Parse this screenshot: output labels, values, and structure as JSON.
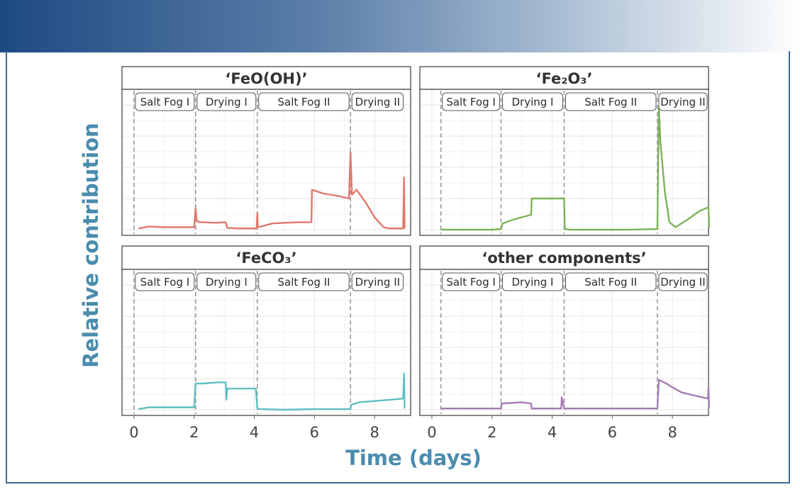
{
  "chart_data": {
    "type": "line",
    "xlabel": "Time (days)",
    "ylabel": "Relative contribution",
    "xlim": [
      -0.4,
      9.2
    ],
    "ylim": [
      0,
      1
    ],
    "x_ticks": [
      "0",
      "2",
      "4",
      "6",
      "8"
    ],
    "facets": [
      {
        "title": "‘FeO(OH)’",
        "color": "#e0786c",
        "phases": [
          {
            "label": "Salt Fog I",
            "start": 0.0,
            "end": 2.05
          },
          {
            "label": "Drying I",
            "start": 2.05,
            "end": 4.1
          },
          {
            "label": "Salt Fog II",
            "start": 4.1,
            "end": 7.2
          },
          {
            "label": "Drying II",
            "start": 7.2,
            "end": 9.0
          }
        ],
        "x": [
          0.15,
          0.5,
          1.0,
          1.5,
          2.0,
          2.05,
          2.08,
          2.15,
          2.3,
          2.7,
          3.05,
          3.1,
          3.5,
          4.0,
          4.08,
          4.1,
          4.12,
          4.3,
          4.6,
          5.0,
          5.5,
          5.9,
          5.92,
          6.3,
          6.8,
          7.15,
          7.2,
          7.25,
          7.4,
          7.7,
          8.0,
          8.3,
          8.5,
          8.95,
          8.98,
          9.0
        ],
        "y": [
          0.01,
          0.025,
          0.02,
          0.02,
          0.02,
          0.17,
          0.08,
          0.06,
          0.06,
          0.055,
          0.06,
          0.015,
          0.01,
          0.01,
          0.01,
          0.13,
          0.02,
          0.03,
          0.05,
          0.055,
          0.06,
          0.06,
          0.32,
          0.29,
          0.27,
          0.25,
          0.62,
          0.28,
          0.32,
          0.22,
          0.1,
          0.02,
          0.01,
          0.01,
          0.42,
          0.01
        ]
      },
      {
        "title": "‘Fe₂O₃’",
        "color": "#7cb356",
        "phases": [
          {
            "label": "Salt Fog I",
            "start": 0.3,
            "end": 2.3
          },
          {
            "label": "Drying I",
            "start": 2.3,
            "end": 4.4
          },
          {
            "label": "Salt Fog II",
            "start": 4.4,
            "end": 7.5
          },
          {
            "label": "Drying II",
            "start": 7.5,
            "end": 9.3
          }
        ],
        "x": [
          0.3,
          1.0,
          2.0,
          2.3,
          2.35,
          2.7,
          3.0,
          3.3,
          3.32,
          4.0,
          4.4,
          4.42,
          4.6,
          5.5,
          6.5,
          7.5,
          7.55,
          7.6,
          7.75,
          7.9,
          8.1,
          8.5,
          8.9,
          9.2,
          9.22
        ],
        "y": [
          0.0,
          0.0,
          0.0,
          0.005,
          0.05,
          0.08,
          0.1,
          0.12,
          0.25,
          0.25,
          0.25,
          0.005,
          0.0,
          0.0,
          0.0,
          0.005,
          0.98,
          0.7,
          0.3,
          0.06,
          0.02,
          0.08,
          0.15,
          0.18,
          0.02
        ]
      },
      {
        "title": "‘FeCO₃’",
        "color": "#5fbfc0",
        "phases": [
          {
            "label": "Salt Fog I",
            "start": 0.0,
            "end": 2.05
          },
          {
            "label": "Drying I",
            "start": 2.05,
            "end": 4.1
          },
          {
            "label": "Salt Fog II",
            "start": 4.1,
            "end": 7.2
          },
          {
            "label": "Drying II",
            "start": 7.2,
            "end": 9.0
          }
        ],
        "x": [
          0.15,
          0.5,
          1.0,
          2.0,
          2.05,
          2.3,
          2.8,
          3.05,
          3.07,
          3.1,
          3.5,
          4.05,
          4.1,
          4.2,
          5.0,
          6.0,
          7.0,
          7.2,
          7.22,
          7.5,
          8.0,
          8.5,
          8.95,
          8.98,
          9.0
        ],
        "y": [
          0.005,
          0.02,
          0.02,
          0.02,
          0.21,
          0.21,
          0.22,
          0.22,
          0.08,
          0.17,
          0.17,
          0.17,
          0.01,
          0.005,
          0.0,
          0.005,
          0.005,
          0.005,
          0.04,
          0.06,
          0.07,
          0.08,
          0.09,
          0.29,
          0.01
        ]
      },
      {
        "title": "‘other components’",
        "color": "#a57db5",
        "phases": [
          {
            "label": "Salt Fog I",
            "start": 0.3,
            "end": 2.3
          },
          {
            "label": "Drying I",
            "start": 2.3,
            "end": 4.4
          },
          {
            "label": "Salt Fog II",
            "start": 4.4,
            "end": 7.5
          },
          {
            "label": "Drying II",
            "start": 7.5,
            "end": 9.3
          }
        ],
        "x": [
          0.3,
          1.0,
          2.0,
          2.3,
          2.32,
          3.0,
          3.3,
          3.32,
          4.0,
          4.3,
          4.32,
          4.4,
          5.0,
          6.0,
          7.0,
          7.5,
          7.55,
          7.8,
          8.0,
          8.3,
          8.8,
          9.18,
          9.2,
          9.22
        ],
        "y": [
          0.01,
          0.01,
          0.01,
          0.01,
          0.05,
          0.06,
          0.05,
          0.01,
          0.01,
          0.01,
          0.1,
          0.01,
          0.01,
          0.01,
          0.01,
          0.01,
          0.24,
          0.21,
          0.18,
          0.14,
          0.11,
          0.09,
          0.18,
          0.02
        ]
      }
    ]
  }
}
